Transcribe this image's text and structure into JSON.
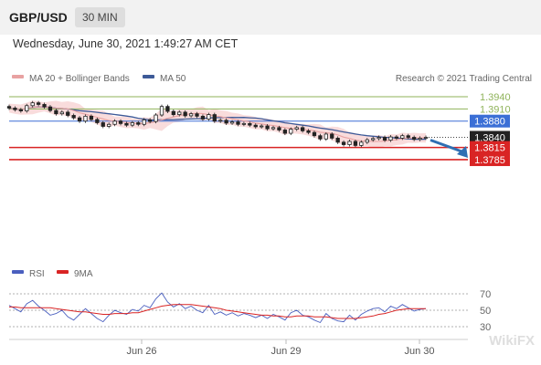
{
  "header": {
    "pair": "GBP/USD",
    "timeframe": "30 MIN",
    "datetime": "Wednesday, June 30, 2021 1:49:27 AM CET"
  },
  "legend": {
    "ma20_label": "MA 20 + Bollinger Bands",
    "ma50_label": "MA 50",
    "credit": "Research © 2021 Trading Central",
    "rsi_label": "RSI",
    "rsi_ma_label": "9MA"
  },
  "colors": {
    "ma20": "#e8a2a2",
    "ma50": "#3d5a98",
    "bollinger": "#f9dcdc",
    "resistance": "#8fb35a",
    "pivot": "#3b6fd6",
    "support": "#d92424",
    "price": "#222222",
    "forecast_arrow": "#2f6fb3",
    "rsi": "#4a5fbf",
    "rsi_ma": "#d92424"
  },
  "watermark": "WikiFX",
  "chart_data": {
    "type": "candlestick",
    "title": "GBP/USD 30 MIN",
    "x_ticks": [
      "Jun 26",
      "Jun 29",
      "Jun 30"
    ],
    "price_range": [
      1.377,
      1.3965
    ],
    "levels": [
      {
        "label": "1.3940",
        "value": 1.394,
        "kind": "resistance"
      },
      {
        "label": "1.3910",
        "value": 1.391,
        "kind": "resistance"
      },
      {
        "label": "1.3880",
        "value": 1.388,
        "kind": "pivot"
      },
      {
        "label": "1.3840",
        "value": 1.384,
        "kind": "last_price"
      },
      {
        "label": "1.3815",
        "value": 1.3815,
        "kind": "support"
      },
      {
        "label": "1.3785",
        "value": 1.3785,
        "kind": "support"
      }
    ],
    "close_series": [
      1.3912,
      1.3908,
      1.3905,
      1.3918,
      1.3925,
      1.3921,
      1.3915,
      1.3906,
      1.3898,
      1.3902,
      1.3894,
      1.3888,
      1.388,
      1.3892,
      1.3884,
      1.3876,
      1.3867,
      1.3872,
      1.388,
      1.3874,
      1.387,
      1.3876,
      1.3872,
      1.3883,
      1.3879,
      1.3895,
      1.3916,
      1.3904,
      1.3896,
      1.3902,
      1.3893,
      1.3898,
      1.3892,
      1.3885,
      1.3896,
      1.388,
      1.3882,
      1.3875,
      1.3878,
      1.3872,
      1.3874,
      1.387,
      1.3866,
      1.3868,
      1.3861,
      1.3864,
      1.3858,
      1.385,
      1.386,
      1.3864,
      1.3856,
      1.3852,
      1.3844,
      1.3836,
      1.3848,
      1.3838,
      1.3828,
      1.3822,
      1.383,
      1.382,
      1.3828,
      1.3834,
      1.3837,
      1.384,
      1.3833,
      1.3841,
      1.3838,
      1.3844,
      1.384,
      1.3835,
      1.3838,
      1.384
    ],
    "forecast": {
      "from": 1.384,
      "to": 1.3785
    },
    "rsi": {
      "levels": [
        70,
        50,
        30
      ],
      "values": [
        56,
        52,
        48,
        58,
        62,
        55,
        50,
        44,
        46,
        50,
        42,
        38,
        45,
        52,
        46,
        40,
        36,
        44,
        50,
        47,
        45,
        51,
        49,
        56,
        53,
        64,
        71,
        60,
        54,
        58,
        52,
        55,
        50,
        47,
        56,
        45,
        48,
        44,
        47,
        43,
        46,
        44,
        41,
        44,
        40,
        45,
        42,
        38,
        47,
        50,
        44,
        42,
        38,
        35,
        46,
        40,
        37,
        36,
        44,
        38,
        45,
        49,
        52,
        53,
        48,
        55,
        52,
        57,
        53,
        49,
        51,
        52
      ],
      "ma9": [
        54,
        54,
        53,
        53,
        53,
        53,
        53,
        53,
        52,
        51,
        50,
        49,
        48,
        48,
        47,
        46,
        45,
        45,
        46,
        46,
        46,
        47,
        47,
        49,
        51,
        53,
        55,
        56,
        57,
        57,
        57,
        57,
        56,
        55,
        54,
        53,
        52,
        50,
        49,
        48,
        47,
        46,
        45,
        44,
        44,
        43,
        43,
        42,
        42,
        43,
        43,
        43,
        42,
        42,
        42,
        41,
        40,
        40,
        40,
        40,
        41,
        42,
        43,
        45,
        46,
        48,
        50,
        51,
        52,
        52,
        52,
        52
      ]
    }
  }
}
